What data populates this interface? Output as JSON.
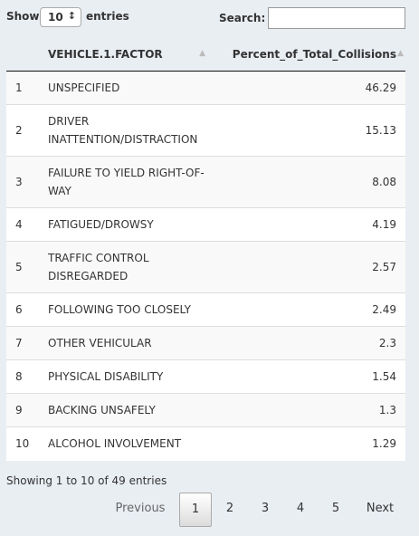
{
  "controls": {
    "show_label": "Show",
    "length_value": "10",
    "entries_label": "entries",
    "search_label": "Search:"
  },
  "table": {
    "columns": [
      "VEHICLE.1.FACTOR",
      "Percent_of_Total_Collisions"
    ],
    "rows": [
      [
        1,
        "UNSPECIFIED",
        46.29
      ],
      [
        2,
        "DRIVER INATTENTION/DISTRACTION",
        15.13
      ],
      [
        3,
        "FAILURE TO YIELD RIGHT-OF-WAY",
        8.08
      ],
      [
        4,
        "FATIGUED/DROWSY",
        4.19
      ],
      [
        5,
        "TRAFFIC CONTROL DISREGARDED",
        2.57
      ],
      [
        6,
        "FOLLOWING TOO CLOSELY",
        2.49
      ],
      [
        7,
        "OTHER VEHICULAR",
        2.3
      ],
      [
        8,
        "PHYSICAL DISABILITY",
        1.54
      ],
      [
        9,
        "BACKING UNSAFELY",
        1.3
      ],
      [
        10,
        "ALCOHOL INVOLVEMENT",
        1.29
      ]
    ]
  },
  "footer": {
    "info": "Showing 1 to 10 of 49 entries"
  },
  "pagination": {
    "previous": "Previous",
    "pages": [
      1,
      2,
      3,
      4,
      5
    ],
    "next": "Next"
  }
}
